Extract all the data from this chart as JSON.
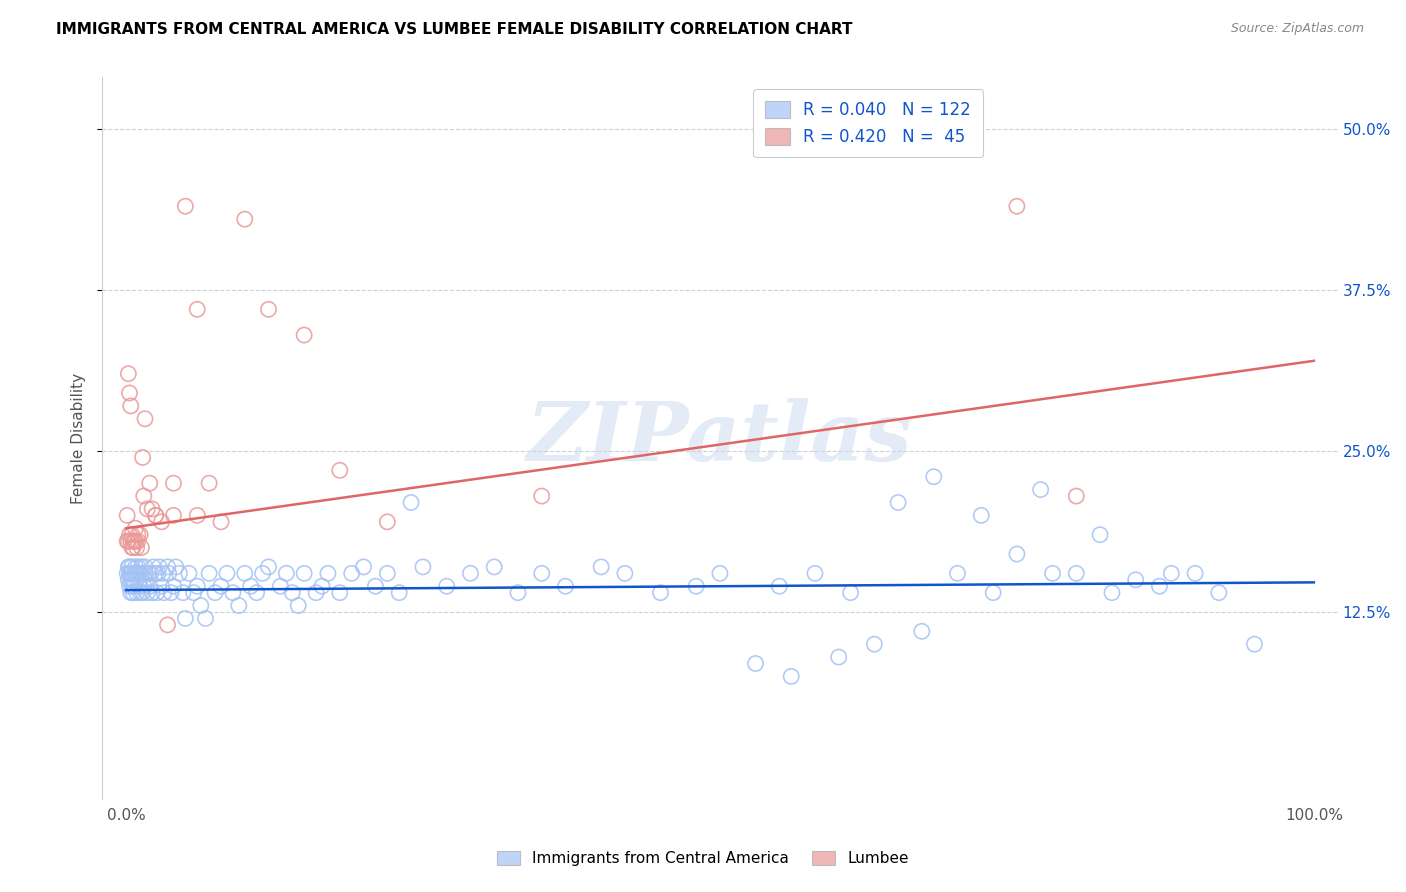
{
  "title": "IMMIGRANTS FROM CENTRAL AMERICA VS LUMBEE FEMALE DISABILITY CORRELATION CHART",
  "source": "Source: ZipAtlas.com",
  "ylabel": "Female Disability",
  "xlim": [
    -0.02,
    1.02
  ],
  "ylim": [
    -0.02,
    0.54
  ],
  "yticks": [
    0.125,
    0.25,
    0.375,
    0.5
  ],
  "ytick_labels": [
    "12.5%",
    "25.0%",
    "37.5%",
    "50.0%"
  ],
  "xtick_labels": [
    "0.0%",
    "100.0%"
  ],
  "xtick_vals": [
    0.0,
    1.0
  ],
  "watermark": "ZIPatlas",
  "blue_color": "#a4c2f4",
  "pink_color": "#ea9999",
  "blue_line_color": "#1155cc",
  "pink_line_color": "#e06666",
  "legend_R_blue": "0.040",
  "legend_N_blue": "122",
  "legend_R_pink": "0.420",
  "legend_N_pink": " 45",
  "blue_scatter_x": [
    0.001,
    0.002,
    0.002,
    0.003,
    0.003,
    0.003,
    0.004,
    0.004,
    0.004,
    0.005,
    0.005,
    0.005,
    0.006,
    0.006,
    0.007,
    0.007,
    0.008,
    0.008,
    0.009,
    0.009,
    0.01,
    0.01,
    0.011,
    0.011,
    0.012,
    0.012,
    0.013,
    0.013,
    0.014,
    0.015,
    0.016,
    0.016,
    0.017,
    0.018,
    0.019,
    0.02,
    0.021,
    0.022,
    0.023,
    0.025,
    0.026,
    0.027,
    0.028,
    0.03,
    0.031,
    0.032,
    0.035,
    0.036,
    0.038,
    0.04,
    0.042,
    0.045,
    0.048,
    0.05,
    0.053,
    0.057,
    0.06,
    0.063,
    0.067,
    0.07,
    0.075,
    0.08,
    0.085,
    0.09,
    0.095,
    0.1,
    0.105,
    0.11,
    0.115,
    0.12,
    0.13,
    0.135,
    0.14,
    0.145,
    0.15,
    0.16,
    0.165,
    0.17,
    0.18,
    0.19,
    0.2,
    0.21,
    0.22,
    0.23,
    0.24,
    0.25,
    0.27,
    0.29,
    0.31,
    0.33,
    0.35,
    0.37,
    0.4,
    0.42,
    0.45,
    0.48,
    0.5,
    0.53,
    0.56,
    0.6,
    0.63,
    0.67,
    0.7,
    0.73,
    0.77,
    0.8,
    0.83,
    0.87,
    0.9,
    0.65,
    0.68,
    0.72,
    0.75,
    0.78,
    0.82,
    0.85,
    0.88,
    0.92,
    0.55,
    0.58,
    0.61,
    0.95
  ],
  "blue_scatter_y": [
    0.155,
    0.16,
    0.15,
    0.145,
    0.16,
    0.155,
    0.14,
    0.155,
    0.15,
    0.145,
    0.155,
    0.16,
    0.14,
    0.15,
    0.155,
    0.145,
    0.16,
    0.155,
    0.15,
    0.14,
    0.155,
    0.16,
    0.145,
    0.155,
    0.14,
    0.15,
    0.155,
    0.16,
    0.14,
    0.145,
    0.155,
    0.16,
    0.15,
    0.14,
    0.155,
    0.145,
    0.155,
    0.14,
    0.16,
    0.155,
    0.14,
    0.155,
    0.16,
    0.145,
    0.155,
    0.14,
    0.16,
    0.155,
    0.14,
    0.145,
    0.16,
    0.155,
    0.14,
    0.12,
    0.155,
    0.14,
    0.145,
    0.13,
    0.12,
    0.155,
    0.14,
    0.145,
    0.155,
    0.14,
    0.13,
    0.155,
    0.145,
    0.14,
    0.155,
    0.16,
    0.145,
    0.155,
    0.14,
    0.13,
    0.155,
    0.14,
    0.145,
    0.155,
    0.14,
    0.155,
    0.16,
    0.145,
    0.155,
    0.14,
    0.21,
    0.16,
    0.145,
    0.155,
    0.16,
    0.14,
    0.155,
    0.145,
    0.16,
    0.155,
    0.14,
    0.145,
    0.155,
    0.085,
    0.075,
    0.09,
    0.1,
    0.11,
    0.155,
    0.14,
    0.22,
    0.155,
    0.14,
    0.145,
    0.155,
    0.21,
    0.23,
    0.2,
    0.17,
    0.155,
    0.185,
    0.15,
    0.155,
    0.14,
    0.145,
    0.155,
    0.14,
    0.1
  ],
  "pink_scatter_x": [
    0.001,
    0.002,
    0.003,
    0.004,
    0.005,
    0.006,
    0.007,
    0.008,
    0.009,
    0.01,
    0.012,
    0.013,
    0.014,
    0.016,
    0.018,
    0.02,
    0.022,
    0.025,
    0.03,
    0.035,
    0.04,
    0.05,
    0.06,
    0.07,
    0.08,
    0.1,
    0.12,
    0.15,
    0.18,
    0.22,
    0.001,
    0.002,
    0.003,
    0.004,
    0.005,
    0.006,
    0.008,
    0.01,
    0.015,
    0.025,
    0.04,
    0.06,
    0.35,
    0.75,
    0.8
  ],
  "pink_scatter_y": [
    0.2,
    0.31,
    0.295,
    0.285,
    0.185,
    0.175,
    0.18,
    0.19,
    0.175,
    0.18,
    0.185,
    0.175,
    0.245,
    0.275,
    0.205,
    0.225,
    0.205,
    0.2,
    0.195,
    0.115,
    0.225,
    0.44,
    0.36,
    0.225,
    0.195,
    0.43,
    0.36,
    0.34,
    0.235,
    0.195,
    0.18,
    0.18,
    0.185,
    0.18,
    0.175,
    0.18,
    0.18,
    0.185,
    0.215,
    0.2,
    0.2,
    0.2,
    0.215,
    0.44,
    0.215
  ],
  "blue_line_x": [
    0.0,
    1.0
  ],
  "blue_line_y": [
    0.142,
    0.148
  ],
  "pink_line_x": [
    0.0,
    1.0
  ],
  "pink_line_y": [
    0.19,
    0.32
  ],
  "grid_color": "#cccccc",
  "background_color": "#ffffff",
  "title_color": "#000000",
  "axis_label_color": "#555555",
  "tick_color_right": "#1155cc"
}
